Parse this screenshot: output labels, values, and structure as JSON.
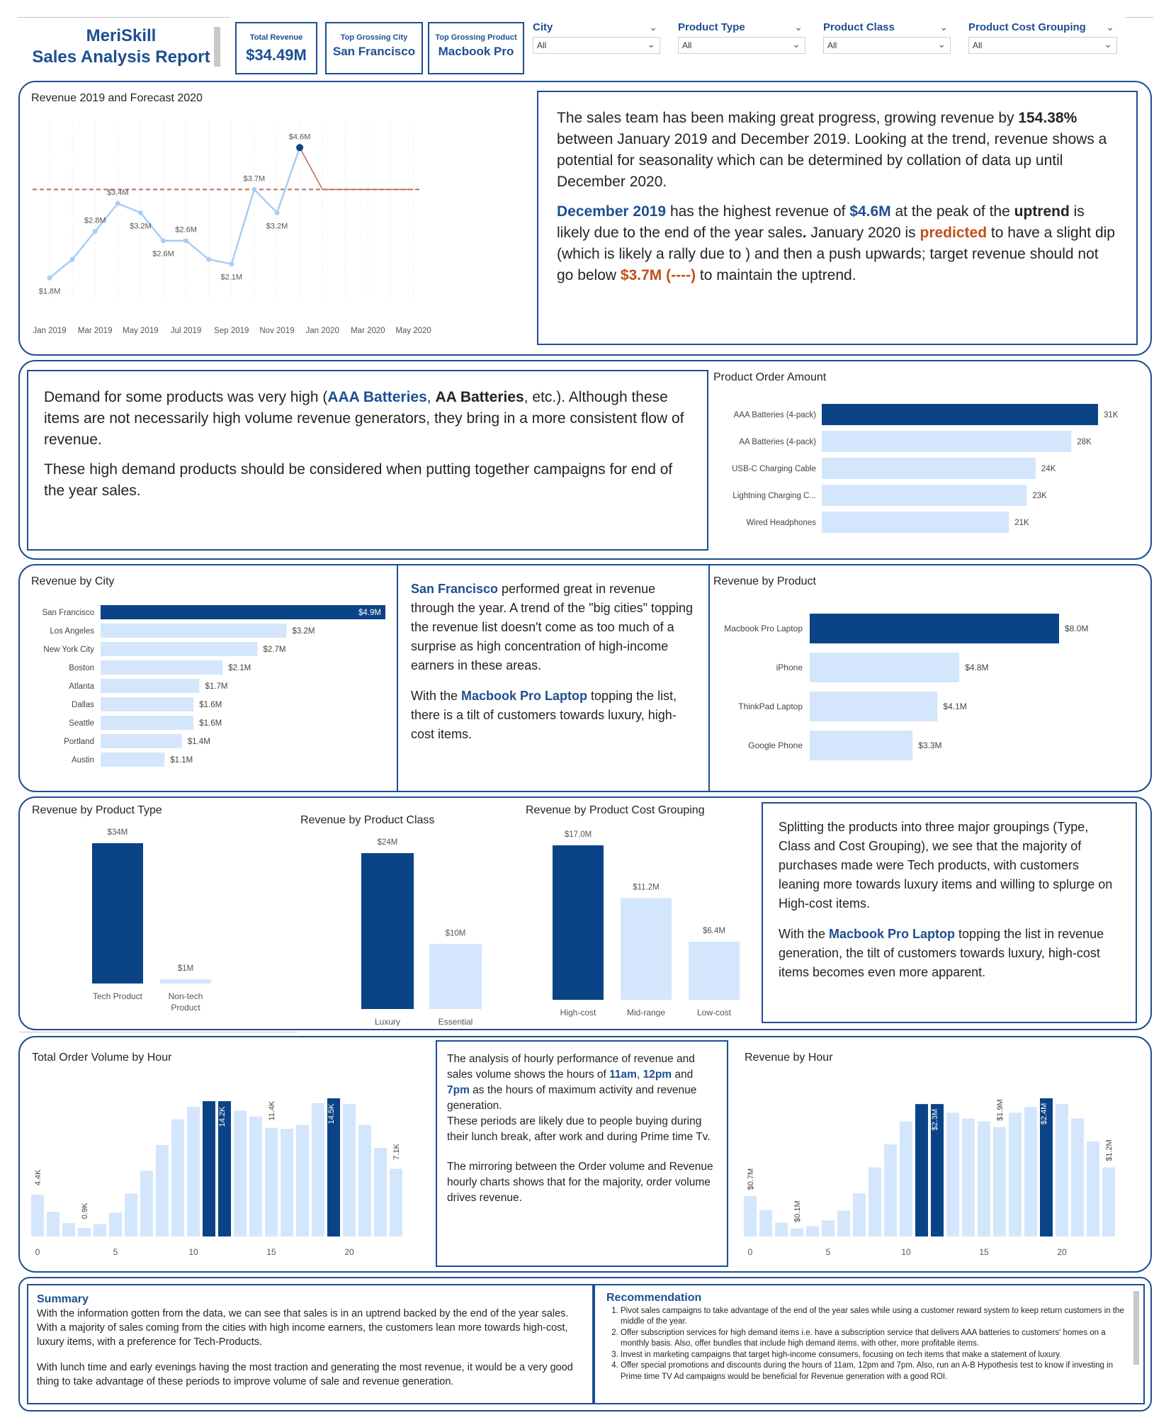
{
  "header": {
    "brand": "MeriSkill",
    "report_title": "Sales Analysis Report",
    "kpis": [
      {
        "label": "Total Revenue",
        "value": "$34.49M"
      },
      {
        "label": "Top Grossing City",
        "value": "San Francisco"
      },
      {
        "label": "Top Grossing Product",
        "value": "Macbook Pro"
      }
    ],
    "slicers": [
      {
        "label": "City",
        "value": "All"
      },
      {
        "label": "Product Type",
        "value": "All"
      },
      {
        "label": "Product Class",
        "value": "All"
      },
      {
        "label": "Product Cost Grouping",
        "value": "All"
      }
    ]
  },
  "colors": {
    "primary": "#1d4f91",
    "dark_bar": "#0b4387",
    "light_bar": "#d4e6fb",
    "forecast_line": "#c06a50",
    "target": "#b87060"
  },
  "section1": {
    "text_p1_a": "The sales team has been making great progress, growing revenue by ",
    "text_p1_b": "154.38%",
    "text_p1_c": " between January 2019 and December 2019. Looking at the trend, revenue shows a potential for seasonality which can be determined by collation of data up until December 2020.",
    "text_p2_a": "December 2019",
    "text_p2_b": " has the highest revenue of ",
    "text_p2_c": "$4.6M",
    "text_p2_d": " at the peak of the ",
    "text_p2_e": "uptrend",
    "text_p2_f": " is likely due to the end of the year sales",
    "text_p2_g": ".",
    "text_p2_h": " January 2020 is ",
    "text_p2_i": "predicted",
    "text_p2_j": " to have a slight dip (which is likely a rally due to ) and then a push upwards; target revenue should not go below ",
    "text_p2_k": "$3.7M (----)",
    "text_p2_l": " to maintain the uptrend."
  },
  "section2": {
    "text_p1_a": "Demand for some products was very high (",
    "text_p1_b": "AAA Batteries",
    "text_p1_c": ", ",
    "text_p1_d": "AA Batteries",
    "text_p1_e": ", etc.). Although these items are not necessarily high volume revenue generators, they bring in a more consistent flow of revenue.",
    "text_p2": "These high demand products should be considered when putting together campaigns for end of the year sales."
  },
  "section3": {
    "text_p1_a": "San Francisco",
    "text_p1_b": " performed great in revenue through the year. A trend of the \"big cities\" topping the revenue list doesn't come as too much of a surprise as high concentration of high-income earners in these areas.",
    "text_p2_a": "With the ",
    "text_p2_b": "Macbook Pro Laptop",
    "text_p2_c": " topping the list, there is a tilt of customers towards luxury, high-cost items."
  },
  "section4": {
    "text_p1": "Splitting the products into three major groupings (Type,  Class and Cost Grouping), we see that the majority of purchases made  were Tech products, with customers leaning more towards luxury items and willing to splurge on High-cost items.",
    "text_p2_a": "With the ",
    "text_p2_b": "Macbook Pro Laptop",
    "text_p2_c": " topping the list in revenue generation, the tilt of customers towards luxury, high-cost items becomes even more apparent."
  },
  "section5": {
    "t1": "The analysis of hourly performance of revenue and sales volume shows the hours of ",
    "t2": "11am",
    "t3": ", ",
    "t4": "12pm",
    "t5": " and ",
    "t6": "7pm",
    "t7": " as the hours of maximum activity and revenue generation.",
    "t8": "These periods are likely due to people buying during their lunch break, after work and during Prime time Tv.",
    "t9": "The mirroring between the  Order volume and Revenue hourly charts shows that for the majority, order volume drives revenue."
  },
  "summary": {
    "title": "Summary",
    "p1": "With the information gotten from the data, we can see that sales is in an uptrend backed by the end of the year sales. With a majority of sales coming from the cities with high income earners, the customers lean more towards high-cost, luxury items, with a preference for Tech-Products.",
    "p2": "With lunch time and early evenings having the most traction and generating the most revenue, it would be a very good thing to take advantage of these periods to improve volume of sale and revenue generation."
  },
  "recommendation": {
    "title": "Recommendation",
    "items": [
      "Pivot sales campaigns to take advantage of the end of the year sales while using a customer reward system to keep return customers in the middle of the year.",
      "Offer subscription services for high demand items i.e. have a subscription service that delivers AAA batteries to customers' homes on a monthly basis. Also, offer bundles that include high demand items, with other, more profitable items.",
      "Invest in marketing campaigns that target high-income consumers, focusing on tech items that make a statement of luxury.",
      "Offer special promotions and discounts during the hours of 11am, 12pm and 7pm. Also, run an A-B Hypothesis test to know if investing in Prime time TV Ad campaigns would be beneficial for Revenue generation with a good ROI."
    ]
  },
  "chart_data": [
    {
      "id": "revenue-forecast",
      "type": "line",
      "title": "Revenue 2019 and Forecast 2020",
      "x": [
        "Jan 2019",
        "Feb 2019",
        "Mar 2019",
        "Apr 2019",
        "May 2019",
        "Jun 2019",
        "Jul 2019",
        "Aug 2019",
        "Sep 2019",
        "Oct 2019",
        "Nov 2019",
        "Dec 2019"
      ],
      "values": [
        1.8,
        2.2,
        2.8,
        3.4,
        3.2,
        2.6,
        2.6,
        2.2,
        2.1,
        3.7,
        3.2,
        4.6
      ],
      "value_labels": [
        "$1.8M",
        "",
        "$2.8M",
        "$3.4M",
        "$3.2M",
        "$2.6M",
        "$2.6M",
        "",
        "$2.1M",
        "$3.7M",
        "$3.2M",
        "$4.6M"
      ],
      "forecast_x": [
        "Dec 2019",
        "Jan 2020",
        "Feb 2020",
        "Mar 2020",
        "Apr 2020",
        "May 2020"
      ],
      "forecast_values": [
        4.6,
        3.7,
        3.7,
        3.7,
        3.7,
        3.7
      ],
      "target": 3.7,
      "x_ticks": [
        "Jan 2019",
        "Mar 2019",
        "May 2019",
        "Jul 2019",
        "Sep 2019",
        "Nov 2019",
        "Jan 2020",
        "Mar 2020",
        "May 2020"
      ],
      "ylim": [
        1.5,
        5.0
      ]
    },
    {
      "id": "product-order-amount",
      "type": "bar",
      "orientation": "horizontal",
      "title": "Product Order Amount",
      "categories": [
        "AAA Batteries (4-pack)",
        "AA Batteries (4-pack)",
        "USB-C Charging Cable",
        "Lightning Charging C...",
        "Wired Headphones"
      ],
      "values": [
        31,
        28,
        24,
        23,
        21
      ],
      "value_labels": [
        "31K",
        "28K",
        "24K",
        "23K",
        "21K"
      ],
      "highlight": [
        0
      ]
    },
    {
      "id": "revenue-by-city",
      "type": "bar",
      "orientation": "horizontal",
      "title": "Revenue by City",
      "categories": [
        "San Francisco",
        "Los Angeles",
        "New York City",
        "Boston",
        "Atlanta",
        "Dallas",
        "Seattle",
        "Portland",
        "Austin"
      ],
      "values": [
        4.9,
        3.2,
        2.7,
        2.1,
        1.7,
        1.6,
        1.6,
        1.4,
        1.1
      ],
      "value_labels": [
        "$4.9M",
        "$3.2M",
        "$2.7M",
        "$2.1M",
        "$1.7M",
        "$1.6M",
        "$1.6M",
        "$1.4M",
        "$1.1M"
      ],
      "highlight": [
        0
      ]
    },
    {
      "id": "revenue-by-product",
      "type": "bar",
      "orientation": "horizontal",
      "title": "Revenue by Product",
      "categories": [
        "Macbook Pro Laptop",
        "iPhone",
        "ThinkPad Laptop",
        "Google Phone"
      ],
      "values": [
        8.0,
        4.8,
        4.1,
        3.3
      ],
      "value_labels": [
        "$8.0M",
        "$4.8M",
        "$4.1M",
        "$3.3M"
      ],
      "highlight": [
        0
      ]
    },
    {
      "id": "revenue-by-product-type",
      "type": "bar",
      "title": "Revenue by Product Type",
      "categories": [
        "Tech Product",
        "Non-tech Product"
      ],
      "values": [
        34,
        1
      ],
      "value_labels": [
        "$34M",
        "$1M"
      ],
      "highlight": [
        0
      ]
    },
    {
      "id": "revenue-by-product-class",
      "type": "bar",
      "title": "Revenue by Product Class",
      "categories": [
        "Luxury",
        "Essential"
      ],
      "values": [
        24,
        10
      ],
      "value_labels": [
        "$24M",
        "$10M"
      ],
      "highlight": [
        0
      ]
    },
    {
      "id": "revenue-by-cost-grouping",
      "type": "bar",
      "title": "Revenue by Product Cost Grouping",
      "categories": [
        "High-cost",
        "Mid-range",
        "Low-cost"
      ],
      "values": [
        17.0,
        11.2,
        6.4
      ],
      "value_labels": [
        "$17.0M",
        "$11.2M",
        "$6.4M"
      ],
      "highlight": [
        0
      ]
    },
    {
      "id": "order-volume-by-hour",
      "type": "bar",
      "title": "Total Order Volume by Hour",
      "x": [
        0,
        1,
        2,
        3,
        4,
        5,
        6,
        7,
        8,
        9,
        10,
        11,
        12,
        13,
        14,
        15,
        16,
        17,
        18,
        19,
        20,
        21,
        22,
        23
      ],
      "values": [
        4.4,
        2.6,
        1.4,
        0.9,
        1.3,
        2.5,
        4.5,
        6.9,
        9.6,
        12.3,
        13.6,
        14.2,
        14.2,
        13.2,
        12.6,
        11.4,
        11.3,
        11.7,
        14.0,
        14.5,
        13.9,
        11.7,
        9.3,
        7.1
      ],
      "value_labels": {
        "0": "4.4K",
        "3": "0.9K",
        "12": "14.2K",
        "15": "11.4K",
        "19": "14.5K",
        "23": "7.1K"
      },
      "highlight": [
        11,
        12,
        19
      ],
      "x_ticks": [
        0,
        5,
        10,
        15,
        20
      ]
    },
    {
      "id": "revenue-by-hour",
      "type": "bar",
      "title": "Revenue by Hour",
      "x": [
        0,
        1,
        2,
        3,
        4,
        5,
        6,
        7,
        8,
        9,
        10,
        11,
        12,
        13,
        14,
        15,
        16,
        17,
        18,
        19,
        20,
        21,
        22,
        23
      ],
      "values": [
        0.7,
        0.46,
        0.24,
        0.14,
        0.18,
        0.28,
        0.45,
        0.75,
        1.2,
        1.6,
        2.0,
        2.3,
        2.3,
        2.15,
        2.05,
        2.0,
        1.9,
        2.15,
        2.25,
        2.4,
        2.3,
        2.05,
        1.65,
        1.2
      ],
      "value_labels": {
        "0": "$0.7M",
        "3": "$0.1M",
        "12": "$2.3M",
        "16": "$1.9M",
        "19": "$2.4M",
        "23": "$1.2M"
      },
      "highlight": [
        11,
        12,
        19
      ],
      "x_ticks": [
        0,
        5,
        10,
        15,
        20
      ]
    }
  ]
}
